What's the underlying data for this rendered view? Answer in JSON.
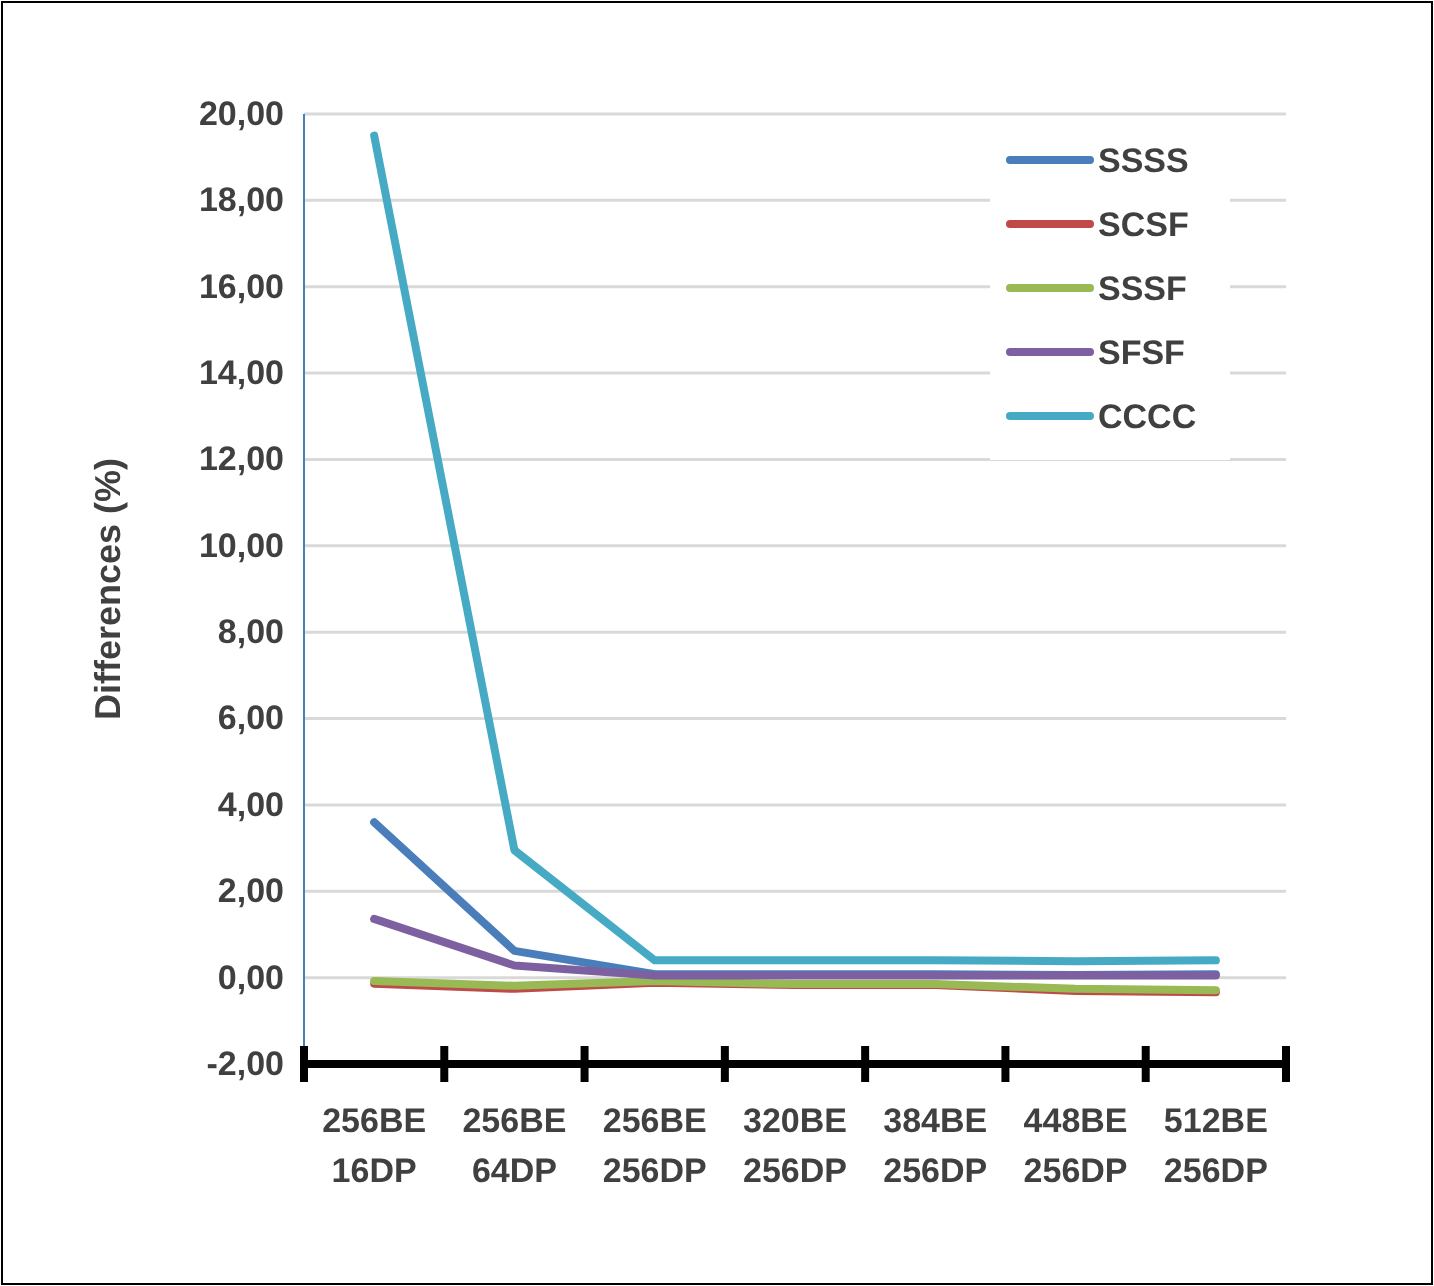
{
  "chart_data": {
    "type": "line",
    "ylabel": "Differences (%)",
    "categories": [
      "256BE\n16DP",
      "256BE\n64DP",
      "256BE\n256DP",
      "320BE\n256DP",
      "384BE\n256DP",
      "448BE\n256DP",
      "512BE\n256DP"
    ],
    "series": [
      {
        "name": "SSSS",
        "color": "#4a7ebb",
        "values": [
          3.6,
          0.62,
          0.08,
          0.08,
          0.08,
          0.06,
          0.08
        ]
      },
      {
        "name": "SCSF",
        "color": "#be4b48",
        "values": [
          -0.14,
          -0.26,
          -0.12,
          -0.17,
          -0.17,
          -0.31,
          -0.34
        ]
      },
      {
        "name": "SSSF",
        "color": "#98b954",
        "values": [
          -0.08,
          -0.19,
          -0.08,
          -0.15,
          -0.15,
          -0.26,
          -0.29
        ]
      },
      {
        "name": "SFSF",
        "color": "#7d60a0",
        "values": [
          1.36,
          0.28,
          0.05,
          0.05,
          0.05,
          0.05,
          0.05
        ]
      },
      {
        "name": "CCCC",
        "color": "#46aac5",
        "values": [
          19.5,
          2.95,
          0.4,
          0.4,
          0.4,
          0.38,
          0.4
        ]
      }
    ],
    "ylim": [
      -2,
      20
    ],
    "yticks": [
      {
        "value": -2,
        "label": "-2,00"
      },
      {
        "value": 0,
        "label": "0,00"
      },
      {
        "value": 2,
        "label": "2,00"
      },
      {
        "value": 4,
        "label": "4,00"
      },
      {
        "value": 6,
        "label": "6,00"
      },
      {
        "value": 8,
        "label": "8,00"
      },
      {
        "value": 10,
        "label": "10,00"
      },
      {
        "value": 12,
        "label": "12,00"
      },
      {
        "value": 14,
        "label": "14,00"
      },
      {
        "value": 16,
        "label": "16,00"
      },
      {
        "value": 18,
        "label": "18,00"
      },
      {
        "value": 20,
        "label": "20,00"
      }
    ],
    "grid": "y",
    "legend": "top right",
    "marker": "none",
    "line_style": "solid"
  }
}
